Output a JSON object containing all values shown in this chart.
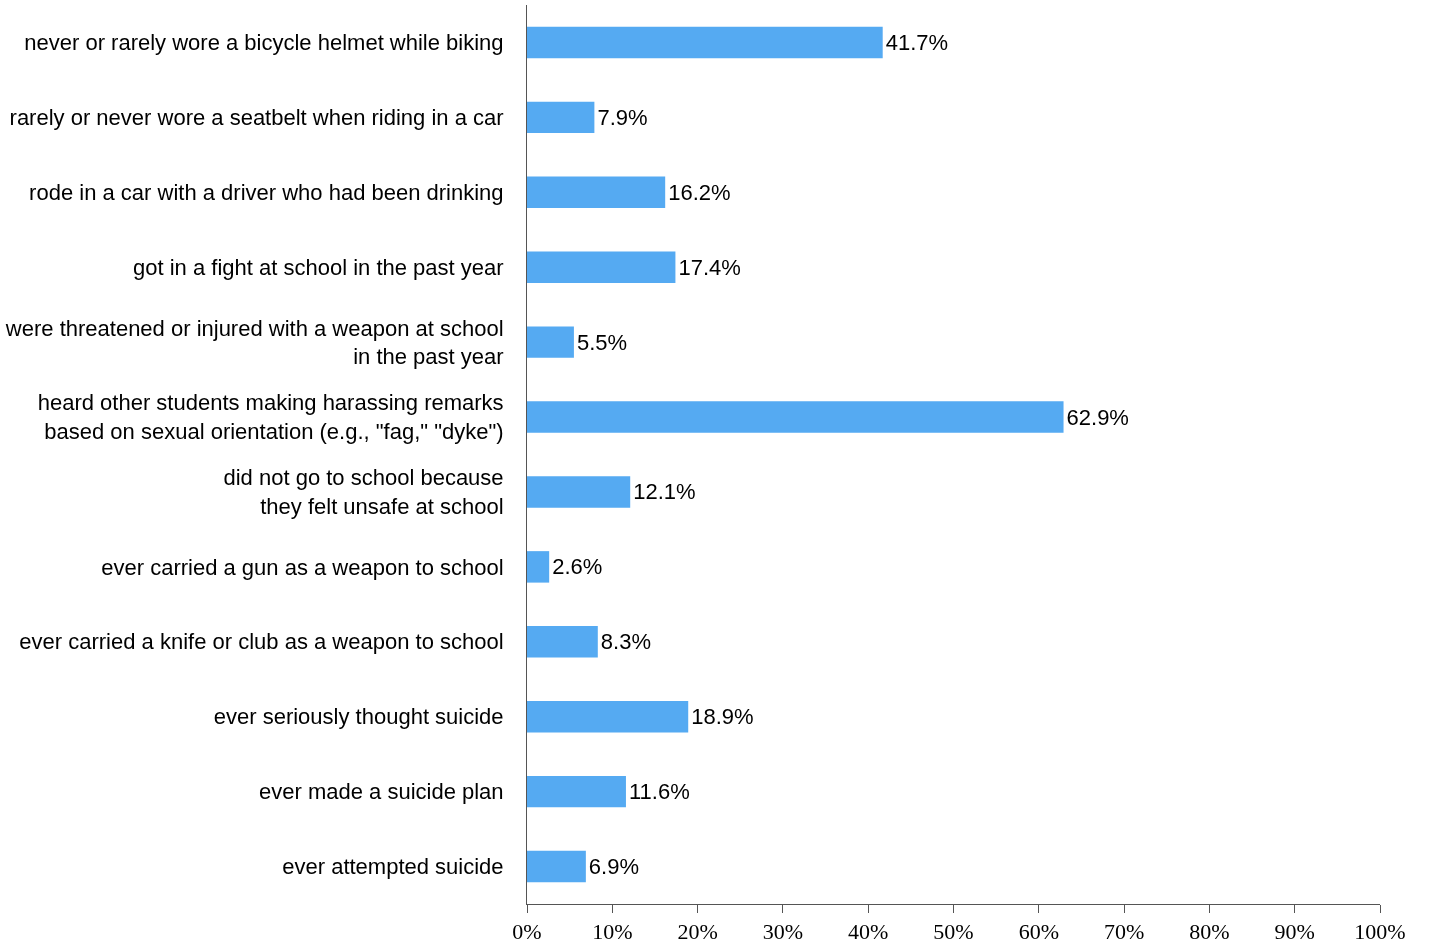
{
  "chart_data": {
    "type": "bar",
    "orientation": "horizontal",
    "categories": [
      "never or rarely wore a bicycle helmet while biking",
      "rarely or never wore a seatbelt when riding in a car",
      "rode in a car with a driver who had been drinking",
      "got in a fight at school in the past year",
      "were threatened or injured with a weapon at school\nin the past year",
      "heard other students making harassing remarks\nbased on sexual orientation (e.g., \"fag,\" \"dyke\")",
      "did not go to school because\nthey felt unsafe at school",
      "ever carried a gun as a weapon to school",
      "ever carried a knife or club as a weapon to school",
      "ever seriously thought suicide",
      "ever made a suicide plan",
      "ever attempted suicide"
    ],
    "values": [
      41.7,
      7.9,
      16.2,
      17.4,
      5.5,
      62.9,
      12.1,
      2.6,
      8.3,
      18.9,
      11.6,
      6.9
    ],
    "value_labels": [
      "41.7%",
      "7.9%",
      "16.2%",
      "17.4%",
      "5.5%",
      "62.9%",
      "12.1%",
      "2.6%",
      "8.3%",
      "18.9%",
      "11.6%",
      "6.9%"
    ],
    "color": "#55aaf2",
    "xlim": [
      0,
      100
    ],
    "xticks": [
      {
        "value": 0,
        "label": "0%"
      },
      {
        "value": 10,
        "label": "10%"
      },
      {
        "value": 20,
        "label": "20%"
      },
      {
        "value": 30,
        "label": "30%"
      },
      {
        "value": 40,
        "label": "40%"
      },
      {
        "value": 50,
        "label": "50%"
      },
      {
        "value": 60,
        "label": "60%"
      },
      {
        "value": 70,
        "label": "70%"
      },
      {
        "value": 80,
        "label": "80%"
      },
      {
        "value": 90,
        "label": "90%"
      },
      {
        "value": 100,
        "label": "100%"
      }
    ],
    "legend": false
  }
}
